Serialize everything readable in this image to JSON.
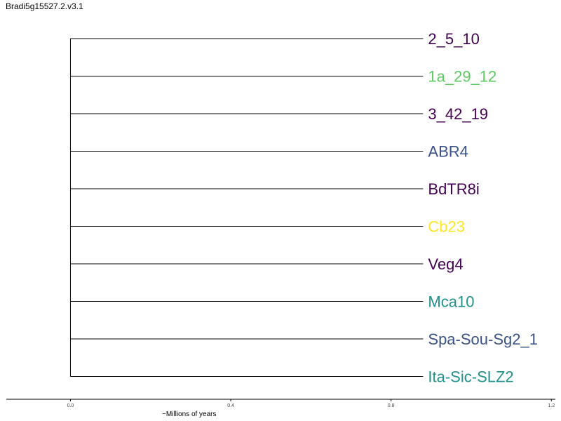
{
  "title": "Bradi5g15527.2.v3.1",
  "chart_data": {
    "type": "dendrogram",
    "title": "Bradi5g15527.2.v3.1",
    "xlabel": "~Millions of years",
    "xlim": [
      -0.16,
      1.21
    ],
    "x_ticks": [
      {
        "value": 0.0,
        "label": "0.0"
      },
      {
        "value": 0.4,
        "label": "0.4"
      },
      {
        "value": 0.8,
        "label": "0.8"
      },
      {
        "value": 1.2,
        "label": "1.2"
      }
    ],
    "root_x": 0.0,
    "leaves": [
      {
        "label": "2_5_10",
        "color": "#440154",
        "branch_end": 0.88
      },
      {
        "label": "1a_29_12",
        "color": "#5ec962",
        "branch_end": 0.88
      },
      {
        "label": "3_42_19",
        "color": "#440154",
        "branch_end": 0.88
      },
      {
        "label": "ABR4",
        "color": "#3b528b",
        "branch_end": 0.88
      },
      {
        "label": "BdTR8i",
        "color": "#440154",
        "branch_end": 0.88
      },
      {
        "label": "Cb23",
        "color": "#fde725",
        "branch_end": 0.88
      },
      {
        "label": "Veg4",
        "color": "#440154",
        "branch_end": 0.88
      },
      {
        "label": "Mca10",
        "color": "#21918c",
        "branch_end": 0.88
      },
      {
        "label": "Spa-Sou-Sg2_1",
        "color": "#3b528b",
        "branch_end": 0.88
      },
      {
        "label": "Ita-Sic-SLZ2",
        "color": "#21918c",
        "branch_end": 0.88
      }
    ]
  }
}
